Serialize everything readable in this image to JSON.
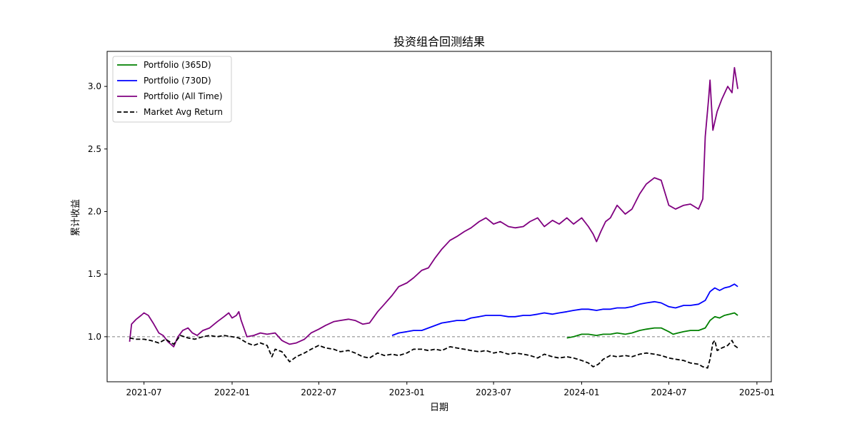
{
  "chart_data": {
    "type": "line",
    "title": "投资组合回测结果",
    "xlabel": "日期",
    "ylabel": "累计收益",
    "x_ticks": [
      "2021-07",
      "2022-01",
      "2022-07",
      "2023-01",
      "2023-07",
      "2024-01",
      "2024-07",
      "2025-01"
    ],
    "y_ticks": [
      "1.0",
      "1.5",
      "2.0",
      "2.5",
      "3.0"
    ],
    "xlim": [
      "2021-04-15",
      "2025-01-31"
    ],
    "ylim": [
      0.64,
      3.28
    ],
    "grid": false,
    "legend_position": "upper left",
    "reference_line": {
      "y": 1.0,
      "style": "dashed",
      "color": "#808080"
    },
    "series": [
      {
        "name": "Portfolio (365D)",
        "color": "#008000",
        "style": "solid",
        "points": [
          [
            "2023-12-01",
            0.99
          ],
          [
            "2023-12-15",
            1.0
          ],
          [
            "2024-01-01",
            1.02
          ],
          [
            "2024-01-15",
            1.02
          ],
          [
            "2024-02-01",
            1.01
          ],
          [
            "2024-02-15",
            1.02
          ],
          [
            "2024-03-01",
            1.02
          ],
          [
            "2024-03-15",
            1.03
          ],
          [
            "2024-04-01",
            1.02
          ],
          [
            "2024-04-15",
            1.03
          ],
          [
            "2024-05-01",
            1.05
          ],
          [
            "2024-05-15",
            1.06
          ],
          [
            "2024-06-01",
            1.07
          ],
          [
            "2024-06-15",
            1.07
          ],
          [
            "2024-07-01",
            1.04
          ],
          [
            "2024-07-10",
            1.02
          ],
          [
            "2024-07-20",
            1.03
          ],
          [
            "2024-08-01",
            1.04
          ],
          [
            "2024-08-15",
            1.05
          ],
          [
            "2024-09-01",
            1.05
          ],
          [
            "2024-09-15",
            1.07
          ],
          [
            "2024-09-25",
            1.13
          ],
          [
            "2024-10-05",
            1.16
          ],
          [
            "2024-10-15",
            1.15
          ],
          [
            "2024-10-25",
            1.17
          ],
          [
            "2024-11-05",
            1.18
          ],
          [
            "2024-11-15",
            1.19
          ],
          [
            "2024-11-22",
            1.17
          ]
        ]
      },
      {
        "name": "Portfolio (730D)",
        "color": "#0000ff",
        "style": "solid",
        "points": [
          [
            "2022-12-01",
            1.01
          ],
          [
            "2022-12-15",
            1.03
          ],
          [
            "2023-01-01",
            1.04
          ],
          [
            "2023-01-15",
            1.05
          ],
          [
            "2023-02-01",
            1.05
          ],
          [
            "2023-02-15",
            1.07
          ],
          [
            "2023-03-01",
            1.09
          ],
          [
            "2023-03-15",
            1.11
          ],
          [
            "2023-04-01",
            1.12
          ],
          [
            "2023-04-15",
            1.13
          ],
          [
            "2023-05-01",
            1.13
          ],
          [
            "2023-05-15",
            1.15
          ],
          [
            "2023-06-01",
            1.16
          ],
          [
            "2023-06-15",
            1.17
          ],
          [
            "2023-07-01",
            1.17
          ],
          [
            "2023-07-15",
            1.17
          ],
          [
            "2023-08-01",
            1.16
          ],
          [
            "2023-08-15",
            1.16
          ],
          [
            "2023-09-01",
            1.17
          ],
          [
            "2023-09-15",
            1.17
          ],
          [
            "2023-10-01",
            1.18
          ],
          [
            "2023-10-15",
            1.19
          ],
          [
            "2023-11-01",
            1.18
          ],
          [
            "2023-11-15",
            1.19
          ],
          [
            "2023-12-01",
            1.2
          ],
          [
            "2023-12-15",
            1.21
          ],
          [
            "2024-01-01",
            1.22
          ],
          [
            "2024-01-15",
            1.22
          ],
          [
            "2024-02-01",
            1.21
          ],
          [
            "2024-02-15",
            1.22
          ],
          [
            "2024-03-01",
            1.22
          ],
          [
            "2024-03-15",
            1.23
          ],
          [
            "2024-04-01",
            1.23
          ],
          [
            "2024-04-15",
            1.24
          ],
          [
            "2024-05-01",
            1.26
          ],
          [
            "2024-05-15",
            1.27
          ],
          [
            "2024-06-01",
            1.28
          ],
          [
            "2024-06-15",
            1.27
          ],
          [
            "2024-07-01",
            1.24
          ],
          [
            "2024-07-15",
            1.23
          ],
          [
            "2024-08-01",
            1.25
          ],
          [
            "2024-08-15",
            1.25
          ],
          [
            "2024-09-01",
            1.26
          ],
          [
            "2024-09-15",
            1.29
          ],
          [
            "2024-09-25",
            1.36
          ],
          [
            "2024-10-05",
            1.39
          ],
          [
            "2024-10-15",
            1.37
          ],
          [
            "2024-10-25",
            1.39
          ],
          [
            "2024-11-05",
            1.4
          ],
          [
            "2024-11-15",
            1.42
          ],
          [
            "2024-11-22",
            1.4
          ]
        ]
      },
      {
        "name": "Portfolio (All Time)",
        "color": "#800080",
        "style": "solid",
        "points": [
          [
            "2021-06-01",
            0.96
          ],
          [
            "2021-06-05",
            1.1
          ],
          [
            "2021-06-15",
            1.14
          ],
          [
            "2021-06-25",
            1.17
          ],
          [
            "2021-07-01",
            1.19
          ],
          [
            "2021-07-10",
            1.17
          ],
          [
            "2021-07-20",
            1.11
          ],
          [
            "2021-08-01",
            1.03
          ],
          [
            "2021-08-10",
            1.01
          ],
          [
            "2021-08-20",
            0.96
          ],
          [
            "2021-09-01",
            0.92
          ],
          [
            "2021-09-10",
            1.0
          ],
          [
            "2021-09-20",
            1.05
          ],
          [
            "2021-10-01",
            1.07
          ],
          [
            "2021-10-10",
            1.03
          ],
          [
            "2021-10-20",
            1.01
          ],
          [
            "2021-11-01",
            1.05
          ],
          [
            "2021-11-15",
            1.07
          ],
          [
            "2021-12-01",
            1.12
          ],
          [
            "2021-12-15",
            1.16
          ],
          [
            "2021-12-25",
            1.19
          ],
          [
            "2022-01-01",
            1.15
          ],
          [
            "2022-01-10",
            1.17
          ],
          [
            "2022-01-15",
            1.2
          ],
          [
            "2022-01-20",
            1.13
          ],
          [
            "2022-02-01",
            1.0
          ],
          [
            "2022-02-15",
            1.01
          ],
          [
            "2022-03-01",
            1.03
          ],
          [
            "2022-03-15",
            1.02
          ],
          [
            "2022-04-01",
            1.03
          ],
          [
            "2022-04-15",
            0.97
          ],
          [
            "2022-04-20",
            0.96
          ],
          [
            "2022-05-01",
            0.94
          ],
          [
            "2022-05-15",
            0.95
          ],
          [
            "2022-06-01",
            0.98
          ],
          [
            "2022-06-15",
            1.03
          ],
          [
            "2022-07-01",
            1.06
          ],
          [
            "2022-07-15",
            1.09
          ],
          [
            "2022-08-01",
            1.12
          ],
          [
            "2022-08-15",
            1.13
          ],
          [
            "2022-09-01",
            1.14
          ],
          [
            "2022-09-15",
            1.13
          ],
          [
            "2022-10-01",
            1.1
          ],
          [
            "2022-10-15",
            1.11
          ],
          [
            "2022-11-01",
            1.2
          ],
          [
            "2022-11-15",
            1.26
          ],
          [
            "2022-12-01",
            1.33
          ],
          [
            "2022-12-15",
            1.4
          ],
          [
            "2023-01-01",
            1.43
          ],
          [
            "2023-01-15",
            1.47
          ],
          [
            "2023-02-01",
            1.53
          ],
          [
            "2023-02-15",
            1.55
          ],
          [
            "2023-03-01",
            1.63
          ],
          [
            "2023-03-15",
            1.7
          ],
          [
            "2023-04-01",
            1.77
          ],
          [
            "2023-04-15",
            1.8
          ],
          [
            "2023-05-01",
            1.84
          ],
          [
            "2023-05-15",
            1.87
          ],
          [
            "2023-06-01",
            1.92
          ],
          [
            "2023-06-15",
            1.95
          ],
          [
            "2023-07-01",
            1.9
          ],
          [
            "2023-07-15",
            1.92
          ],
          [
            "2023-08-01",
            1.88
          ],
          [
            "2023-08-15",
            1.87
          ],
          [
            "2023-09-01",
            1.88
          ],
          [
            "2023-09-15",
            1.92
          ],
          [
            "2023-10-01",
            1.95
          ],
          [
            "2023-10-15",
            1.88
          ],
          [
            "2023-11-01",
            1.93
          ],
          [
            "2023-11-15",
            1.9
          ],
          [
            "2023-12-01",
            1.95
          ],
          [
            "2023-12-15",
            1.9
          ],
          [
            "2024-01-01",
            1.95
          ],
          [
            "2024-01-15",
            1.88
          ],
          [
            "2024-01-25",
            1.82
          ],
          [
            "2024-02-01",
            1.76
          ],
          [
            "2024-02-10",
            1.84
          ],
          [
            "2024-02-20",
            1.92
          ],
          [
            "2024-03-01",
            1.95
          ],
          [
            "2024-03-15",
            2.05
          ],
          [
            "2024-04-01",
            1.98
          ],
          [
            "2024-04-15",
            2.02
          ],
          [
            "2024-05-01",
            2.14
          ],
          [
            "2024-05-15",
            2.22
          ],
          [
            "2024-06-01",
            2.27
          ],
          [
            "2024-06-15",
            2.25
          ],
          [
            "2024-07-01",
            2.05
          ],
          [
            "2024-07-15",
            2.02
          ],
          [
            "2024-08-01",
            2.05
          ],
          [
            "2024-08-15",
            2.06
          ],
          [
            "2024-09-01",
            2.02
          ],
          [
            "2024-09-10",
            2.1
          ],
          [
            "2024-09-15",
            2.6
          ],
          [
            "2024-09-22",
            2.9
          ],
          [
            "2024-09-25",
            3.05
          ],
          [
            "2024-10-01",
            2.65
          ],
          [
            "2024-10-10",
            2.8
          ],
          [
            "2024-10-20",
            2.9
          ],
          [
            "2024-11-01",
            3.0
          ],
          [
            "2024-11-10",
            2.95
          ],
          [
            "2024-11-15",
            3.15
          ],
          [
            "2024-11-22",
            2.98
          ]
        ]
      },
      {
        "name": "Market Avg Return",
        "color": "#000000",
        "style": "dashed",
        "points": [
          [
            "2021-06-01",
            0.99
          ],
          [
            "2021-06-15",
            0.98
          ],
          [
            "2021-07-01",
            0.98
          ],
          [
            "2021-07-15",
            0.97
          ],
          [
            "2021-08-01",
            0.95
          ],
          [
            "2021-08-15",
            0.98
          ],
          [
            "2021-09-01",
            0.94
          ],
          [
            "2021-09-15",
            1.01
          ],
          [
            "2021-10-01",
            0.99
          ],
          [
            "2021-10-15",
            0.98
          ],
          [
            "2021-11-01",
            1.0
          ],
          [
            "2021-11-15",
            1.01
          ],
          [
            "2021-12-01",
            1.0
          ],
          [
            "2021-12-15",
            1.01
          ],
          [
            "2022-01-01",
            1.0
          ],
          [
            "2022-01-15",
            0.99
          ],
          [
            "2022-02-01",
            0.95
          ],
          [
            "2022-02-15",
            0.93
          ],
          [
            "2022-03-01",
            0.95
          ],
          [
            "2022-03-15",
            0.93
          ],
          [
            "2022-03-25",
            0.84
          ],
          [
            "2022-04-01",
            0.9
          ],
          [
            "2022-04-15",
            0.88
          ],
          [
            "2022-05-01",
            0.8
          ],
          [
            "2022-05-15",
            0.84
          ],
          [
            "2022-06-01",
            0.87
          ],
          [
            "2022-06-15",
            0.9
          ],
          [
            "2022-07-01",
            0.93
          ],
          [
            "2022-07-15",
            0.91
          ],
          [
            "2022-08-01",
            0.9
          ],
          [
            "2022-08-15",
            0.88
          ],
          [
            "2022-09-01",
            0.89
          ],
          [
            "2022-09-15",
            0.87
          ],
          [
            "2022-10-01",
            0.84
          ],
          [
            "2022-10-15",
            0.83
          ],
          [
            "2022-11-01",
            0.87
          ],
          [
            "2022-11-15",
            0.85
          ],
          [
            "2022-12-01",
            0.86
          ],
          [
            "2022-12-15",
            0.85
          ],
          [
            "2023-01-01",
            0.87
          ],
          [
            "2023-01-15",
            0.9
          ],
          [
            "2023-02-01",
            0.9
          ],
          [
            "2023-02-15",
            0.89
          ],
          [
            "2023-03-01",
            0.9
          ],
          [
            "2023-03-15",
            0.89
          ],
          [
            "2023-04-01",
            0.92
          ],
          [
            "2023-04-15",
            0.91
          ],
          [
            "2023-05-01",
            0.9
          ],
          [
            "2023-05-15",
            0.89
          ],
          [
            "2023-06-01",
            0.88
          ],
          [
            "2023-06-15",
            0.89
          ],
          [
            "2023-07-01",
            0.87
          ],
          [
            "2023-07-15",
            0.88
          ],
          [
            "2023-08-01",
            0.86
          ],
          [
            "2023-08-15",
            0.87
          ],
          [
            "2023-09-01",
            0.86
          ],
          [
            "2023-09-15",
            0.85
          ],
          [
            "2023-10-01",
            0.83
          ],
          [
            "2023-10-15",
            0.86
          ],
          [
            "2023-11-01",
            0.84
          ],
          [
            "2023-11-15",
            0.83
          ],
          [
            "2023-12-01",
            0.84
          ],
          [
            "2023-12-15",
            0.83
          ],
          [
            "2024-01-01",
            0.81
          ],
          [
            "2024-01-15",
            0.79
          ],
          [
            "2024-01-25",
            0.76
          ],
          [
            "2024-02-05",
            0.78
          ],
          [
            "2024-02-15",
            0.82
          ],
          [
            "2024-03-01",
            0.85
          ],
          [
            "2024-03-15",
            0.84
          ],
          [
            "2024-04-01",
            0.85
          ],
          [
            "2024-04-15",
            0.84
          ],
          [
            "2024-05-01",
            0.86
          ],
          [
            "2024-05-15",
            0.87
          ],
          [
            "2024-06-01",
            0.86
          ],
          [
            "2024-06-15",
            0.85
          ],
          [
            "2024-07-01",
            0.83
          ],
          [
            "2024-07-15",
            0.82
          ],
          [
            "2024-08-01",
            0.81
          ],
          [
            "2024-08-15",
            0.79
          ],
          [
            "2024-09-01",
            0.78
          ],
          [
            "2024-09-10",
            0.76
          ],
          [
            "2024-09-20",
            0.75
          ],
          [
            "2024-09-25",
            0.82
          ],
          [
            "2024-10-01",
            0.95
          ],
          [
            "2024-10-05",
            0.97
          ],
          [
            "2024-10-10",
            0.89
          ],
          [
            "2024-10-20",
            0.91
          ],
          [
            "2024-11-01",
            0.93
          ],
          [
            "2024-11-10",
            0.97
          ],
          [
            "2024-11-15",
            0.93
          ],
          [
            "2024-11-22",
            0.91
          ]
        ]
      }
    ]
  }
}
